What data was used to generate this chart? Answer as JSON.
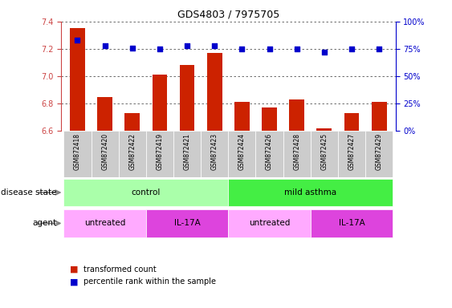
{
  "title": "GDS4803 / 7975705",
  "samples": [
    "GSM872418",
    "GSM872420",
    "GSM872422",
    "GSM872419",
    "GSM872421",
    "GSM872423",
    "GSM872424",
    "GSM872426",
    "GSM872428",
    "GSM872425",
    "GSM872427",
    "GSM872429"
  ],
  "transformed_count": [
    7.35,
    6.85,
    6.73,
    7.01,
    7.08,
    7.17,
    6.81,
    6.77,
    6.83,
    6.62,
    6.73,
    6.81
  ],
  "percentile_rank": [
    83,
    78,
    76,
    75,
    78,
    78,
    75,
    75,
    75,
    72,
    75,
    75
  ],
  "ylim_left": [
    6.6,
    7.4
  ],
  "ylim_right": [
    0,
    100
  ],
  "yticks_left": [
    6.6,
    6.8,
    7.0,
    7.2,
    7.4
  ],
  "yticks_right": [
    0,
    25,
    50,
    75,
    100
  ],
  "bar_color": "#cc2200",
  "dot_color": "#0000cc",
  "disease_state_groups": [
    {
      "label": "control",
      "start": 0,
      "end": 6,
      "color": "#aaffaa"
    },
    {
      "label": "mild asthma",
      "start": 6,
      "end": 12,
      "color": "#44ee44"
    }
  ],
  "agent_groups": [
    {
      "label": "untreated",
      "start": 0,
      "end": 3,
      "color": "#ffaaff"
    },
    {
      "label": "IL-17A",
      "start": 3,
      "end": 6,
      "color": "#dd44dd"
    },
    {
      "label": "untreated",
      "start": 6,
      "end": 9,
      "color": "#ffaaff"
    },
    {
      "label": "IL-17A",
      "start": 9,
      "end": 12,
      "color": "#dd44dd"
    }
  ],
  "legend_bar_label": "transformed count",
  "legend_dot_label": "percentile rank within the sample",
  "disease_state_label": "disease state",
  "agent_label": "agent",
  "bar_width": 0.55,
  "baseline": 6.6,
  "dotted_line_color": "#555555",
  "tick_color_left": "#cc4444",
  "tick_color_right": "#0000cc",
  "bg_color": "#ffffff",
  "xticklabel_bg": "#cccccc"
}
